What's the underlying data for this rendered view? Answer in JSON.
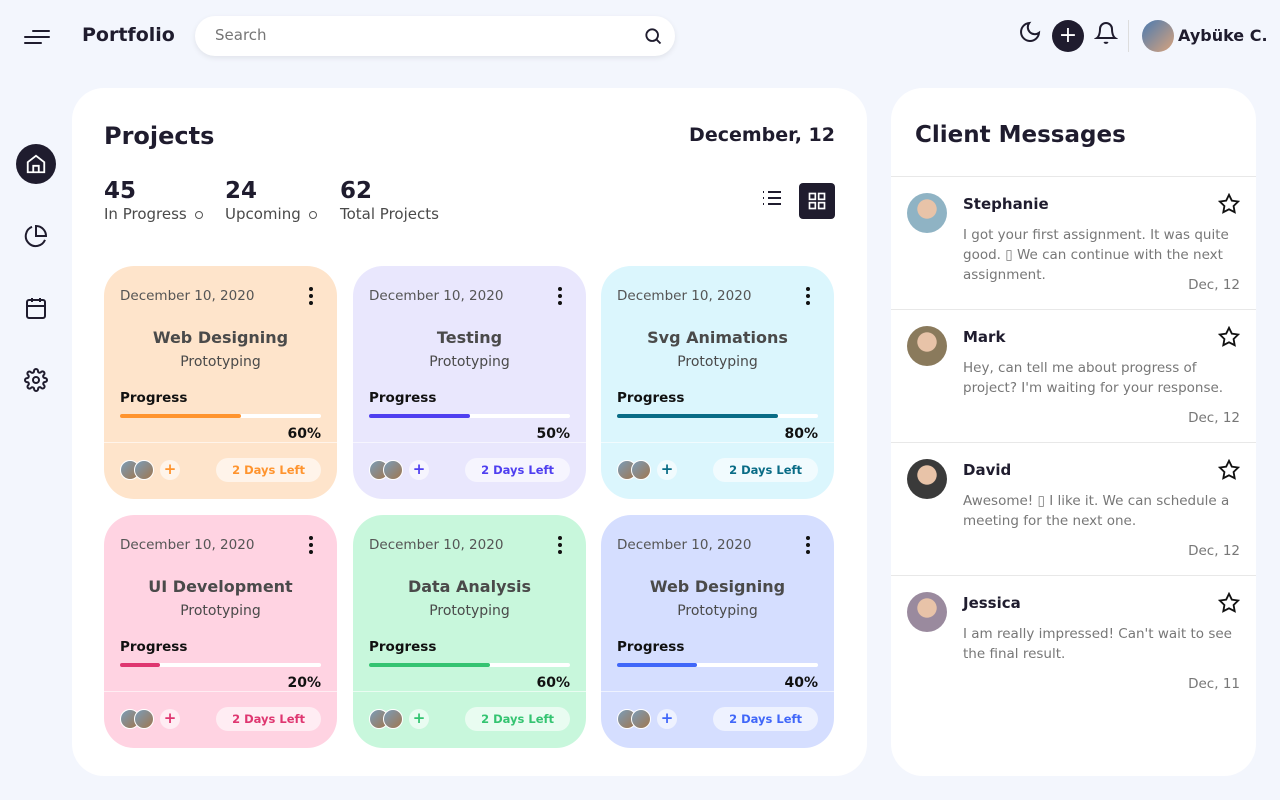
{
  "header": {
    "brand": "Portfolio",
    "search_placeholder": "Search",
    "user": "Aybüke C."
  },
  "sidebar": {
    "items": [
      {
        "icon": "home-icon",
        "active": true
      },
      {
        "icon": "pie-chart-icon"
      },
      {
        "icon": "calendar-icon"
      },
      {
        "icon": "settings-icon"
      }
    ]
  },
  "projects": {
    "title": "Projects",
    "date": "December, 12",
    "stats": [
      {
        "value": "45",
        "label": "In Progress"
      },
      {
        "value": "24",
        "label": "Upcoming"
      },
      {
        "value": "62",
        "label": "Total Projects"
      }
    ],
    "cards": [
      {
        "date": "December 10, 2020",
        "name": "Web Designing",
        "sub": "Prototyping",
        "progress_label": "Progress",
        "progress": 60,
        "pct": "60%",
        "days": "2 Days Left",
        "bg": "#fee4cb",
        "accent": "#ff942e"
      },
      {
        "date": "December 10, 2020",
        "name": "Testing",
        "sub": "Prototyping",
        "progress_label": "Progress",
        "progress": 50,
        "pct": "50%",
        "days": "2 Days Left",
        "bg": "#e9e7fd",
        "accent": "#4f3ff0"
      },
      {
        "date": "December 10, 2020",
        "name": "Svg Animations",
        "sub": "Prototyping",
        "progress_label": "Progress",
        "progress": 80,
        "pct": "80%",
        "days": "2 Days Left",
        "bg": "#dbf6fd",
        "accent": "#096c86"
      },
      {
        "date": "December 10, 2020",
        "name": "UI Development",
        "sub": "Prototyping",
        "progress_label": "Progress",
        "progress": 20,
        "pct": "20%",
        "days": "2 Days Left",
        "bg": "#ffd3e2",
        "accent": "#df3670"
      },
      {
        "date": "December 10, 2020",
        "name": "Data Analysis",
        "sub": "Prototyping",
        "progress_label": "Progress",
        "progress": 60,
        "pct": "60%",
        "days": "2 Days Left",
        "bg": "#c8f7dc",
        "accent": "#34c471"
      },
      {
        "date": "December 10, 2020",
        "name": "Web Designing",
        "sub": "Prototyping",
        "progress_label": "Progress",
        "progress": 40,
        "pct": "40%",
        "days": "2 Days Left",
        "bg": "#d5deff",
        "accent": "#4067f9"
      }
    ]
  },
  "messages": {
    "title": "Client Messages",
    "items": [
      {
        "name": "Stephanie",
        "text": "I got your first assignment. It was quite good. ▯ We can continue with the next assignment.",
        "date": "Dec, 12",
        "color": "#8fb3c4"
      },
      {
        "name": "Mark",
        "text": "Hey, can tell me about progress of project? I'm waiting for your response.",
        "date": "Dec, 12",
        "color": "#8a7a5c"
      },
      {
        "name": "David",
        "text": "Awesome! ▯ I like it. We can schedule a meeting for the next one.",
        "date": "Dec, 12",
        "color": "#3a3a3a"
      },
      {
        "name": "Jessica",
        "text": "I am really impressed! Can't wait to see the final result.",
        "date": "Dec, 11",
        "color": "#9a8a9e"
      }
    ]
  }
}
